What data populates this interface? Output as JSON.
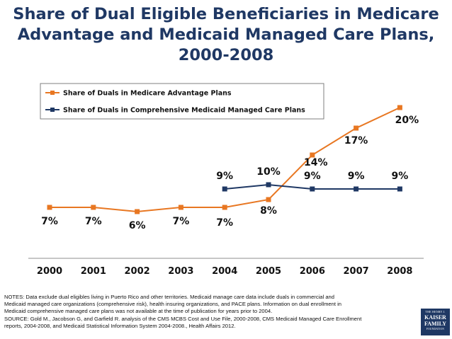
{
  "title_lines": [
    "Share of Dual Eligible Beneficiaries in Medicare",
    "Advantage and Medicaid Managed Care Plans,",
    "2000-2008"
  ],
  "chart_data": {
    "type": "line",
    "x": [
      "2000",
      "2001",
      "2002",
      "2003",
      "2004",
      "2005",
      "2006",
      "2007",
      "2008"
    ],
    "ylim": [
      0,
      22
    ],
    "grid": false,
    "legend_position": "top-left",
    "series": [
      {
        "name": "Share of Duals in Medicare Advantage Plans",
        "color": "#e87722",
        "marker": "square",
        "values": [
          7,
          7,
          6,
          7,
          7,
          8,
          14,
          17,
          20
        ],
        "labels": [
          "7%",
          "7%",
          "6%",
          "7%",
          "7%",
          "8%",
          "14%",
          "17%",
          "20%"
        ]
      },
      {
        "name": "Share of Duals in Comprehensive Medicaid Managed Care Plans",
        "color": "#1f3864",
        "marker": "square",
        "values": [
          null,
          null,
          null,
          null,
          9,
          10,
          9,
          9,
          9
        ],
        "labels": [
          null,
          null,
          null,
          null,
          "9%",
          "10%",
          "9%",
          "9%",
          "9%"
        ]
      }
    ]
  },
  "notes_lines": [
    "NOTES:  Data exclude dual eligibles living in Puerto Rico and other territories. Medicaid manage care data include duals in commercial and",
    "Medicaid managed care  organizations (comprehensive risk), health insuring organizations, and PACE plans.  Information on dual enrollment in",
    "Medicaid comprehensive managed care plans was not available at the time of publication for years prior to 2004.",
    "SOURCE: Gold M., Jacobson G, and Garfield R.  analysis of the CMS MCBS Cost and Use File, 2000-2008, CMS Medicaid Managed Care Enrollment",
    "reports, 2004-2008, and Medicaid Statistical Information System 2004-2008., Health Affairs 2012."
  ],
  "logo": {
    "line1": "THE HENRY J.",
    "line2": "KAISER",
    "line3": "FAMILY",
    "line4": "FOUNDATION",
    "color": "#1f3864"
  }
}
